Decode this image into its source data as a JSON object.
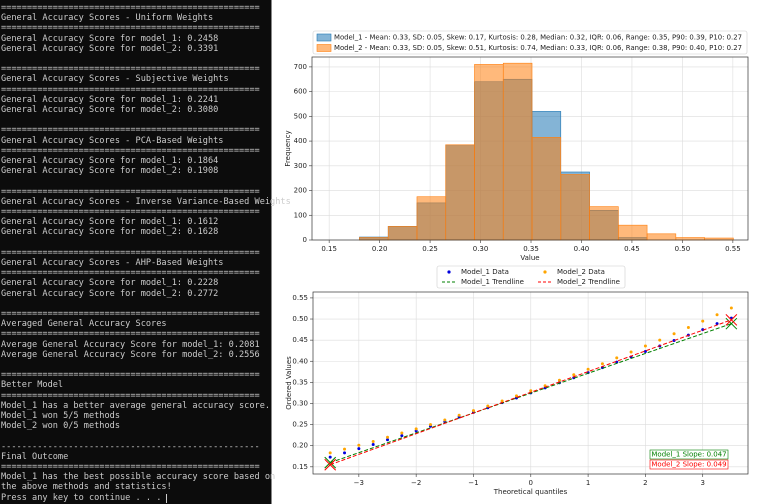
{
  "terminal": {
    "blocks": [
      [
        "==================================================",
        "General Accuracy Scores - Uniform Weights",
        "==================================================",
        "General Accuracy Score for model_1: 0.2458",
        "General Accuracy Score for model_2: 0.3391"
      ],
      [
        "==================================================",
        "General Accuracy Scores - Subjective Weights",
        "==================================================",
        "General Accuracy Score for model_1: 0.2241",
        "General Accuracy Score for model_2: 0.3080"
      ],
      [
        "==================================================",
        "General Accuracy Scores - PCA-Based Weights",
        "==================================================",
        "General Accuracy Score for model_1: 0.1864",
        "General Accuracy Score for model_2: 0.1908"
      ],
      [
        "==================================================",
        "General Accuracy Scores - Inverse Variance-Based Weights",
        "==================================================",
        "General Accuracy Score for model_1: 0.1612",
        "General Accuracy Score for model_2: 0.1628"
      ],
      [
        "==================================================",
        "General Accuracy Scores - AHP-Based Weights",
        "==================================================",
        "General Accuracy Score for model_1: 0.2228",
        "General Accuracy Score for model_2: 0.2772"
      ],
      [
        "==================================================",
        "Averaged General Accuracy Scores",
        "==================================================",
        "Average General Accuracy Score for model_1: 0.2081",
        "Average General Accuracy Score for model_2: 0.2556"
      ],
      [
        "==================================================",
        "Better Model",
        "==================================================",
        "Model_1 has a better average general accuracy score.",
        "Model_1 won 5/5 methods",
        "Model_2 won 0/5 methods"
      ],
      [
        "--------------------------------------------------",
        "Final Outcome",
        "==================================================",
        "Model_1 has the best possible accuracy score based on",
        "the above methods and statistics!",
        "Press any key to continue . . ."
      ]
    ]
  },
  "chart_data": [
    {
      "type": "histogram",
      "xlabel": "Value",
      "ylabel": "Frequency",
      "xlim": [
        0.133,
        0.565
      ],
      "ylim": [
        0,
        740
      ],
      "xticks": [
        0.15,
        {
          "value": 0.2,
          "label": "0.20"
        },
        0.25,
        {
          "value": 0.3,
          "label": "0.30"
        },
        0.35,
        {
          "value": 0.4,
          "label": "0.40"
        },
        0.45,
        {
          "value": 0.5,
          "label": "0.50"
        },
        0.55
      ],
      "yticks": [
        0,
        100,
        200,
        300,
        400,
        500,
        600,
        700
      ],
      "grid": true,
      "legend": "above",
      "series": [
        {
          "name": "Model_1 - Mean: 0.33, SD: 0.05, Skew: 0.17, Kurtosis: 0.28, Median: 0.32, IQR: 0.06, Range: 0.35, P90: 0.39, P10: 0.27",
          "color": "#1f77b4",
          "bins": [
            0.18,
            0.2085,
            0.237,
            0.2655,
            0.294,
            0.3225,
            0.351,
            0.3795,
            0.408,
            0.4365,
            0.465
          ],
          "values": [
            12,
            55,
            150,
            385,
            640,
            650,
            520,
            275,
            120,
            10
          ]
        },
        {
          "name": "Model_2 - Mean: 0.33, SD: 0.05, Skew: 0.51, Kurtosis: 0.74, Median: 0.33, IQR: 0.06, Range: 0.38, P90: 0.40, P10: 0.27",
          "color": "#ff7f0e",
          "bins": [
            0.18,
            0.2085,
            0.237,
            0.2655,
            0.294,
            0.3225,
            0.351,
            0.3795,
            0.408,
            0.4365,
            0.465,
            0.4935,
            0.522,
            0.5505
          ],
          "values": [
            10,
            55,
            175,
            385,
            710,
            715,
            415,
            265,
            135,
            60,
            25,
            10,
            8
          ]
        }
      ]
    },
    {
      "type": "scatter",
      "xlabel": "Theoretical quantiles",
      "ylabel": "Ordered Values",
      "xlim": [
        -3.8,
        3.79
      ],
      "ylim": [
        0.133,
        0.564
      ],
      "xticks": [
        {
          "value": -3,
          "label": "−3"
        },
        {
          "value": -2,
          "label": "−2"
        },
        {
          "value": -1,
          "label": "−1"
        },
        0,
        1,
        2,
        3
      ],
      "yticks": [
        0.15,
        {
          "value": 0.2,
          "label": "0.20"
        },
        0.25,
        {
          "value": 0.3,
          "label": "0.30"
        },
        0.35,
        {
          "value": 0.4,
          "label": "0.40"
        },
        0.45,
        {
          "value": 0.5,
          "label": "0.50"
        },
        0.55
      ],
      "grid": true,
      "legend": "above",
      "series": [
        {
          "name": "Model_1 Data",
          "color": "#0000dd",
          "marker": "o",
          "x": [
            -3.5,
            -3.25,
            -3,
            -2.75,
            -2.5,
            -2.25,
            -2,
            -1.75,
            -1.5,
            -1.25,
            -1,
            -0.75,
            -0.5,
            -0.25,
            0,
            0.25,
            0.5,
            0.75,
            1,
            1.25,
            1.5,
            1.75,
            2,
            2.25,
            2.5,
            2.75,
            3,
            3.25,
            3.5
          ],
          "y": [
            0.173,
            0.183,
            0.193,
            0.203,
            0.214,
            0.224,
            0.235,
            0.246,
            0.257,
            0.268,
            0.279,
            0.29,
            0.302,
            0.313,
            0.325,
            0.337,
            0.349,
            0.361,
            0.373,
            0.385,
            0.398,
            0.41,
            0.423,
            0.436,
            0.449,
            0.462,
            0.475,
            0.489,
            0.502
          ]
        },
        {
          "name": "Model_2 Data",
          "color": "#ffa500",
          "marker": "o",
          "x": [
            -3.5,
            -3.25,
            -3,
            -2.75,
            -2.5,
            -2.25,
            -2,
            -1.75,
            -1.5,
            -1.25,
            -1,
            -0.75,
            -0.5,
            -0.25,
            0,
            0.25,
            0.5,
            0.75,
            1,
            1.25,
            1.5,
            1.75,
            2,
            2.25,
            2.5,
            2.75,
            3,
            3.25,
            3.5
          ],
          "y": [
            0.183,
            0.192,
            0.201,
            0.21,
            0.22,
            0.23,
            0.24,
            0.25,
            0.261,
            0.272,
            0.283,
            0.294,
            0.306,
            0.318,
            0.33,
            0.342,
            0.355,
            0.368,
            0.381,
            0.394,
            0.408,
            0.422,
            0.436,
            0.45,
            0.465,
            0.48,
            0.495,
            0.51,
            0.526
          ]
        },
        {
          "name": "Model_1 Trendline",
          "color": "#008000",
          "marker": "x",
          "linestyle": "dashed",
          "x": [
            -3.5,
            3.5
          ],
          "y": [
            0.16,
            0.489
          ]
        },
        {
          "name": "Model_2 Trendline",
          "color": "#ff0000",
          "marker": "x",
          "linestyle": "dashed",
          "x": [
            -3.5,
            3.5
          ],
          "y": [
            0.155,
            0.498
          ]
        }
      ],
      "annotations": [
        {
          "text": "Model_1 Slope: 0.047",
          "color": "#008000"
        },
        {
          "text": "Model_2 Slope: 0.049",
          "color": "#ff0000"
        }
      ]
    }
  ]
}
